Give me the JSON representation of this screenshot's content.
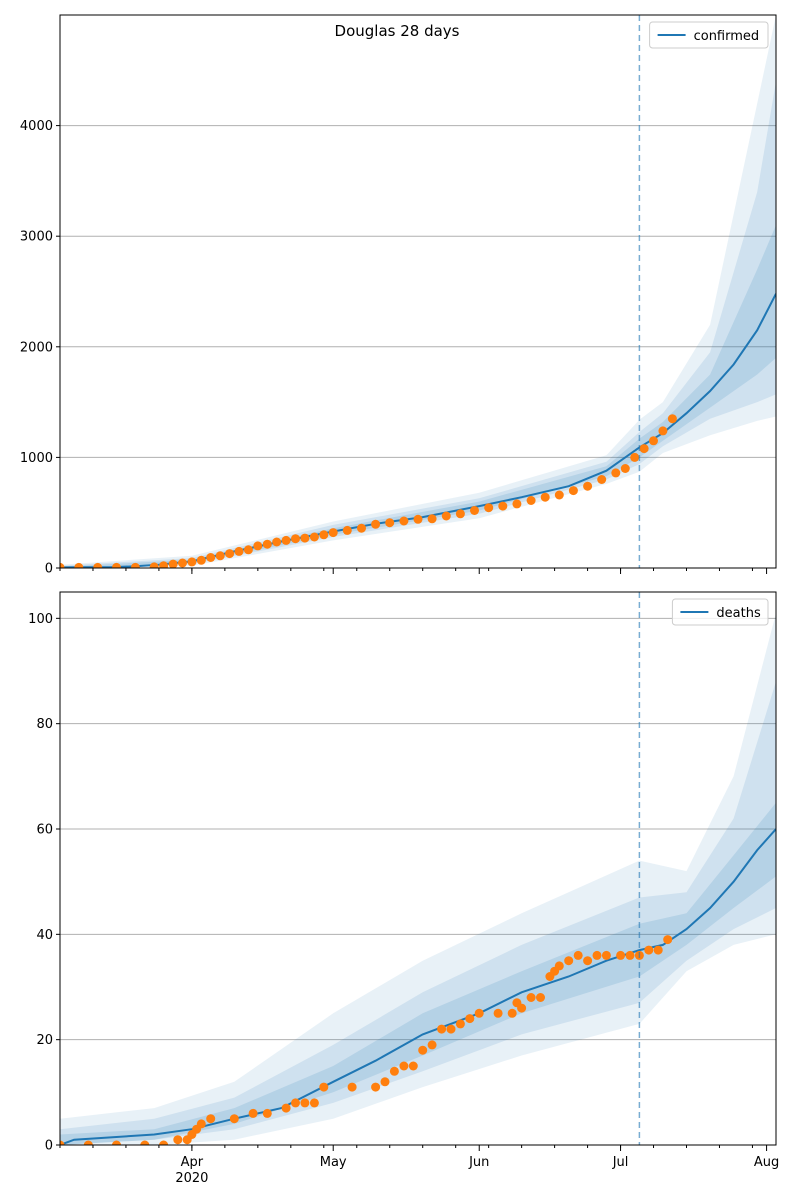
{
  "title": "Douglas 28 days",
  "colors": {
    "model": "#1f77b4",
    "observed": "#ff7f0e",
    "band": "#1f77b4",
    "grid": "#b0b0b0",
    "vline": "#1f77b4"
  },
  "chart_data": [
    {
      "type": "line",
      "legend": "confirmed",
      "legend_placement": "top-right",
      "grid": "horizontal",
      "xlim": [
        "2020-03-04",
        "2020-08-03"
      ],
      "x_ticks": [
        {
          "date": "2020-04-01",
          "label": "Apr"
        },
        {
          "date": "2020-05-01",
          "label": "May"
        },
        {
          "date": "2020-06-01",
          "label": "Jun"
        },
        {
          "date": "2020-07-01",
          "label": "Jul"
        },
        {
          "date": "2020-08-01",
          "label": "Aug"
        }
      ],
      "year_label": "",
      "ylim": [
        0,
        5000
      ],
      "y_ticks": [
        0,
        1000,
        2000,
        3000,
        4000
      ],
      "forecast_start": "2020-07-05",
      "model": {
        "x": [
          "2020-03-04",
          "2020-03-15",
          "2020-03-20",
          "2020-03-25",
          "2020-04-01",
          "2020-04-10",
          "2020-04-20",
          "2020-05-01",
          "2020-05-10",
          "2020-05-20",
          "2020-06-01",
          "2020-06-10",
          "2020-06-20",
          "2020-06-28",
          "2020-07-05",
          "2020-07-10",
          "2020-07-15",
          "2020-07-20",
          "2020-07-25",
          "2020-07-30",
          "2020-08-03"
        ],
        "y": [
          5,
          8,
          15,
          30,
          60,
          150,
          240,
          330,
          400,
          460,
          560,
          640,
          740,
          880,
          1090,
          1220,
          1400,
          1600,
          1840,
          2150,
          2480
        ]
      },
      "bands": [
        {
          "x": [
            "2020-03-04",
            "2020-04-01",
            "2020-05-01",
            "2020-06-01",
            "2020-06-28",
            "2020-07-05",
            "2020-07-10",
            "2020-07-20",
            "2020-07-30",
            "2020-08-03"
          ],
          "lower": [
            0,
            20,
            250,
            450,
            760,
            870,
            1040,
            1200,
            1330,
            1370
          ],
          "upper": [
            30,
            110,
            420,
            680,
            1020,
            1340,
            1500,
            2200,
            4200,
            5000
          ]
        },
        {
          "x": [
            "2020-03-04",
            "2020-04-01",
            "2020-05-01",
            "2020-06-01",
            "2020-06-28",
            "2020-07-05",
            "2020-07-10",
            "2020-07-20",
            "2020-07-30",
            "2020-08-03"
          ],
          "lower": [
            0,
            35,
            280,
            490,
            800,
            940,
            1100,
            1350,
            1500,
            1570
          ],
          "upper": [
            20,
            90,
            390,
            630,
            960,
            1230,
            1400,
            1950,
            3400,
            4400
          ]
        },
        {
          "x": [
            "2020-03-04",
            "2020-04-01",
            "2020-05-01",
            "2020-06-01",
            "2020-06-28",
            "2020-07-05",
            "2020-07-10",
            "2020-07-20",
            "2020-07-30",
            "2020-08-03"
          ],
          "lower": [
            0,
            45,
            300,
            520,
            830,
            1000,
            1150,
            1450,
            1750,
            1900
          ],
          "upper": [
            12,
            75,
            360,
            600,
            920,
            1170,
            1320,
            1750,
            2700,
            3100
          ]
        }
      ],
      "observed": {
        "x": [
          "2020-03-04",
          "2020-03-08",
          "2020-03-12",
          "2020-03-16",
          "2020-03-20",
          "2020-03-24",
          "2020-03-26",
          "2020-03-28",
          "2020-03-30",
          "2020-04-01",
          "2020-04-03",
          "2020-04-05",
          "2020-04-07",
          "2020-04-09",
          "2020-04-11",
          "2020-04-13",
          "2020-04-15",
          "2020-04-17",
          "2020-04-19",
          "2020-04-21",
          "2020-04-23",
          "2020-04-25",
          "2020-04-27",
          "2020-04-29",
          "2020-05-01",
          "2020-05-04",
          "2020-05-07",
          "2020-05-10",
          "2020-05-13",
          "2020-05-16",
          "2020-05-19",
          "2020-05-22",
          "2020-05-25",
          "2020-05-28",
          "2020-05-31",
          "2020-06-03",
          "2020-06-06",
          "2020-06-09",
          "2020-06-12",
          "2020-06-15",
          "2020-06-18",
          "2020-06-21",
          "2020-06-24",
          "2020-06-27",
          "2020-06-30",
          "2020-07-02",
          "2020-07-04",
          "2020-07-06",
          "2020-07-08",
          "2020-07-10",
          "2020-07-12"
        ],
        "y": [
          5,
          5,
          5,
          5,
          5,
          10,
          20,
          35,
          45,
          55,
          70,
          95,
          110,
          130,
          150,
          165,
          200,
          215,
          235,
          250,
          265,
          270,
          280,
          300,
          320,
          340,
          360,
          395,
          410,
          425,
          440,
          445,
          470,
          490,
          520,
          545,
          560,
          580,
          610,
          640,
          660,
          700,
          740,
          800,
          860,
          900,
          1000,
          1080,
          1150,
          1240,
          1350
        ]
      }
    },
    {
      "type": "line",
      "legend": "deaths",
      "legend_placement": "top-right",
      "grid": "horizontal",
      "xlim": [
        "2020-03-04",
        "2020-08-03"
      ],
      "x_ticks": [
        {
          "date": "2020-04-01",
          "label": "Apr"
        },
        {
          "date": "2020-05-01",
          "label": "May"
        },
        {
          "date": "2020-06-01",
          "label": "Jun"
        },
        {
          "date": "2020-07-01",
          "label": "Jul"
        },
        {
          "date": "2020-08-01",
          "label": "Aug"
        }
      ],
      "year_label": "2020",
      "ylim": [
        0,
        105
      ],
      "y_ticks": [
        0,
        20,
        40,
        60,
        80,
        100
      ],
      "forecast_start": "2020-07-05",
      "model": {
        "x": [
          "2020-03-04",
          "2020-03-07",
          "2020-03-24",
          "2020-04-01",
          "2020-04-10",
          "2020-04-20",
          "2020-05-01",
          "2020-05-10",
          "2020-05-20",
          "2020-06-01",
          "2020-06-10",
          "2020-06-20",
          "2020-06-28",
          "2020-07-05",
          "2020-07-10",
          "2020-07-15",
          "2020-07-20",
          "2020-07-25",
          "2020-07-30",
          "2020-08-03"
        ],
        "y": [
          0,
          1,
          2,
          3,
          5,
          7,
          12,
          16,
          21,
          25,
          29,
          32,
          35,
          37,
          38,
          41,
          45,
          50,
          56,
          60
        ]
      },
      "bands": [
        {
          "x": [
            "2020-03-04",
            "2020-03-24",
            "2020-04-10",
            "2020-05-01",
            "2020-05-20",
            "2020-06-10",
            "2020-07-05",
            "2020-07-15",
            "2020-07-25",
            "2020-08-03"
          ],
          "lower": [
            0,
            0,
            1,
            5,
            11,
            17,
            23,
            33,
            38,
            40
          ],
          "upper": [
            5,
            7,
            12,
            25,
            35,
            44,
            54,
            52,
            70,
            101
          ]
        },
        {
          "x": [
            "2020-03-04",
            "2020-03-24",
            "2020-04-10",
            "2020-05-01",
            "2020-05-20",
            "2020-06-10",
            "2020-07-05",
            "2020-07-15",
            "2020-07-25",
            "2020-08-03"
          ],
          "lower": [
            0,
            1,
            3,
            8,
            14,
            21,
            27,
            35,
            41,
            45
          ],
          "upper": [
            3,
            5,
            9,
            19,
            29,
            38,
            47,
            48,
            62,
            88
          ]
        },
        {
          "x": [
            "2020-03-04",
            "2020-03-24",
            "2020-04-10",
            "2020-05-01",
            "2020-05-20",
            "2020-06-10",
            "2020-07-05",
            "2020-07-15",
            "2020-07-25",
            "2020-08-03"
          ],
          "lower": [
            0,
            1,
            4,
            10,
            17,
            25,
            32,
            38,
            45,
            51
          ],
          "upper": [
            2,
            3,
            7,
            15,
            25,
            33,
            42,
            44,
            55,
            65
          ]
        }
      ],
      "observed": {
        "x": [
          "2020-03-04",
          "2020-03-10",
          "2020-03-16",
          "2020-03-22",
          "2020-03-26",
          "2020-03-29",
          "2020-03-31",
          "2020-04-01",
          "2020-04-02",
          "2020-04-03",
          "2020-04-05",
          "2020-04-10",
          "2020-04-14",
          "2020-04-17",
          "2020-04-21",
          "2020-04-23",
          "2020-04-25",
          "2020-04-27",
          "2020-04-29",
          "2020-05-05",
          "2020-05-10",
          "2020-05-12",
          "2020-05-14",
          "2020-05-16",
          "2020-05-18",
          "2020-05-20",
          "2020-05-22",
          "2020-05-24",
          "2020-05-26",
          "2020-05-28",
          "2020-05-30",
          "2020-06-01",
          "2020-06-05",
          "2020-06-08",
          "2020-06-09",
          "2020-06-10",
          "2020-06-12",
          "2020-06-14",
          "2020-06-16",
          "2020-06-17",
          "2020-06-18",
          "2020-06-20",
          "2020-06-22",
          "2020-06-24",
          "2020-06-26",
          "2020-06-28",
          "2020-07-01",
          "2020-07-03",
          "2020-07-05",
          "2020-07-07",
          "2020-07-09",
          "2020-07-11"
        ],
        "y": [
          0,
          0,
          0,
          0,
          0,
          1,
          1,
          2,
          3,
          4,
          5,
          5,
          6,
          6,
          7,
          8,
          8,
          8,
          11,
          11,
          11,
          12,
          14,
          15,
          15,
          18,
          19,
          22,
          22,
          23,
          24,
          25,
          25,
          25,
          27,
          26,
          28,
          28,
          32,
          33,
          34,
          35,
          36,
          35,
          36,
          36,
          36,
          36,
          36,
          37,
          37,
          39
        ]
      }
    }
  ]
}
